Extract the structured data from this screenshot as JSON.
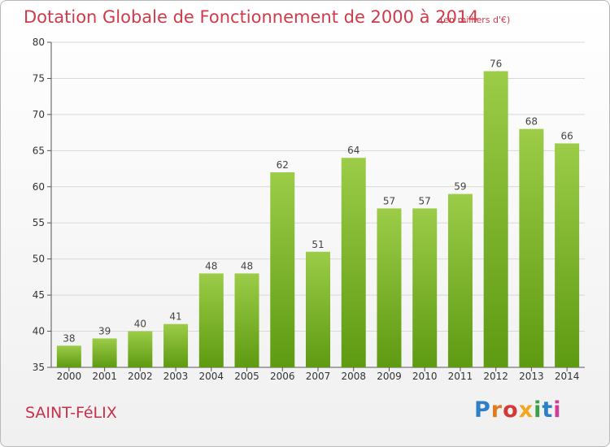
{
  "header": {
    "title": "Dotation Globale de Fonctionnement de 2000 à 2014",
    "unit": "(en milliers d'€)"
  },
  "footer": {
    "commune": "SAINT-FéLIX",
    "logo": "Proxiti"
  },
  "colors": {
    "title": "#d03a4a",
    "bar_top": "#9ccc48",
    "bar_bottom": "#5e9a12",
    "grid": "#d8d8d8"
  },
  "chart_data": {
    "type": "bar",
    "title": "Dotation Globale de Fonctionnement de 2000 à 2014",
    "subtitle": "(en milliers d'€)",
    "xlabel": "",
    "ylabel": "",
    "categories": [
      "2000",
      "2001",
      "2002",
      "2003",
      "2004",
      "2005",
      "2006",
      "2007",
      "2008",
      "2009",
      "2010",
      "2011",
      "2012",
      "2013",
      "2014"
    ],
    "values": [
      38,
      39,
      40,
      41,
      48,
      48,
      62,
      51,
      64,
      57,
      57,
      59,
      76,
      68,
      66
    ],
    "ylim": [
      35,
      80
    ],
    "yticks": [
      35,
      40,
      45,
      50,
      55,
      60,
      65,
      70,
      75,
      80
    ],
    "grid": true,
    "data_labels": true
  }
}
